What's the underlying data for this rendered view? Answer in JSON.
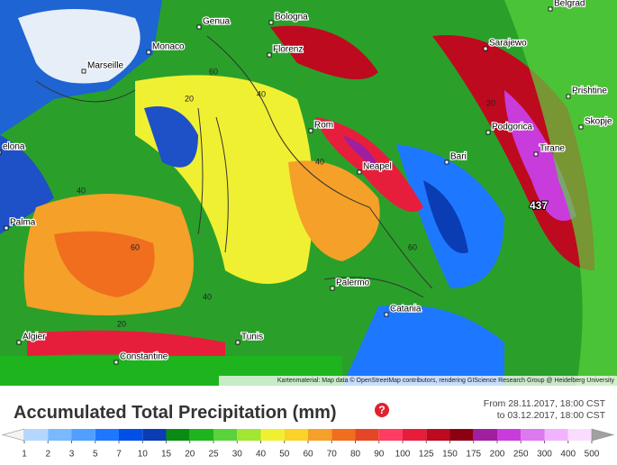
{
  "map": {
    "cities": [
      "Belgrad",
      "Bologna",
      "Genua",
      "Monaco",
      "Marseille",
      "Florenz",
      "Sarajewo",
      "Podgorica",
      "Prishtine",
      "Skopje",
      "Rom",
      "Neapel",
      "Bari",
      "Tirane",
      "elona",
      "Palma",
      "Palermo",
      "Catania",
      "Tunis",
      "Algier",
      "Constantine"
    ],
    "contour_labels": [
      "60",
      "40",
      "20",
      "40",
      "60",
      "40",
      "60",
      "20",
      "40",
      "20"
    ],
    "peak_label": "437",
    "attribution": "Kartenmaterial: Map data © OpenStreetMap contributors, rendering GIScience Research Group @ Heidelberg University"
  },
  "legend": {
    "title": "Accumulated Total Precipitation (mm)",
    "period": [
      "From 28.11.2017, 18:00 CST",
      "to 03.12.2017, 18:00 CST"
    ],
    "levels": [
      1,
      2,
      3,
      5,
      7,
      10,
      15,
      20,
      25,
      30,
      40,
      50,
      60,
      70,
      80,
      90,
      100,
      125,
      150,
      175,
      200,
      250,
      300,
      400,
      500
    ],
    "colors": [
      "#f4f4f4",
      "#b4d7ff",
      "#78b9ff",
      "#50a0ff",
      "#1e78ff",
      "#0050e6",
      "#0a3cb4",
      "#0a8c14",
      "#1eb41e",
      "#5ad23c",
      "#a0e632",
      "#f0f032",
      "#fad228",
      "#f5a028",
      "#f06e1e",
      "#e64628",
      "#ff3c64",
      "#e61e3c",
      "#be0a1e",
      "#8c0014",
      "#a01ea0",
      "#c83cdc",
      "#dc78f0",
      "#f0b4ff",
      "#fadcff",
      "#a0a0a0"
    ]
  }
}
